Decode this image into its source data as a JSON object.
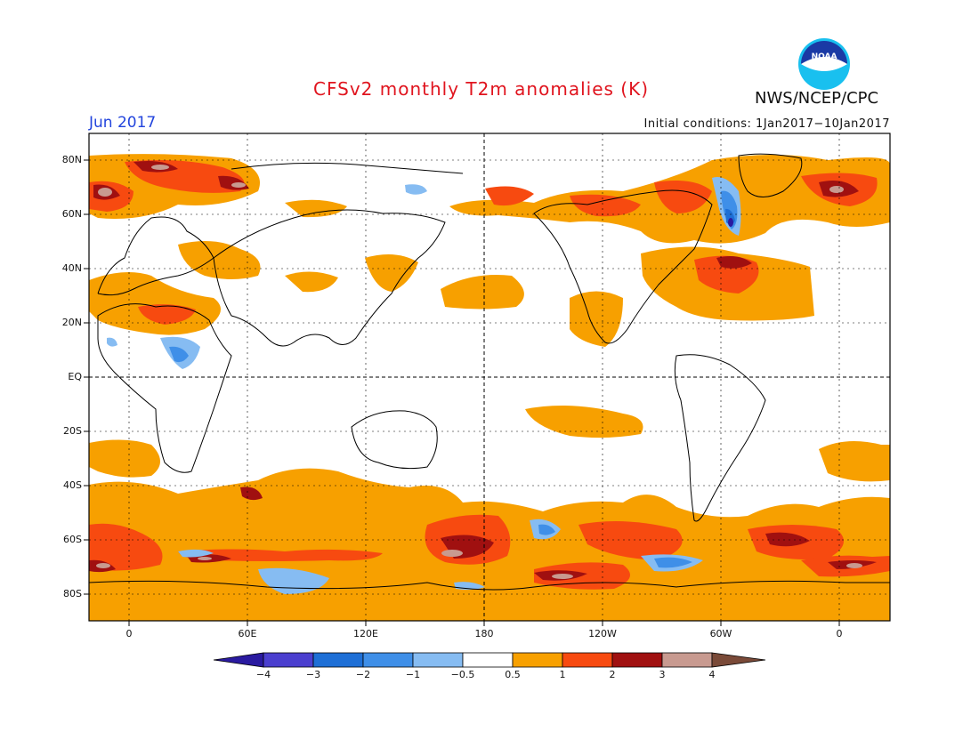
{
  "header": {
    "title": "CFSv2 monthly T2m anomalies (K)",
    "month": "Jun 2017",
    "initial_conditions": "Initial conditions: 1Jan2017−10Jan2017",
    "agency": "NWS/NCEP/CPC",
    "logo_text": "NOAA"
  },
  "axes": {
    "lat_labels": [
      "80N",
      "60N",
      "40N",
      "20N",
      "EQ",
      "20S",
      "40S",
      "60S",
      "80S"
    ],
    "lon_labels": [
      "0",
      "60E",
      "120E",
      "180",
      "120W",
      "60W",
      "0"
    ]
  },
  "colorbar": {
    "labels": [
      "−4",
      "−3",
      "−2",
      "−1",
      "−0.5",
      "0.5",
      "1",
      "2",
      "3",
      "4"
    ],
    "colors": [
      "#2a1aa0",
      "#4b3fcf",
      "#1e6fd6",
      "#3f8fe8",
      "#86bcf2",
      "#ffffff",
      "#f7a000",
      "#f74a10",
      "#a01010",
      "#c89a90",
      "#7a4a38"
    ]
  },
  "map_colors": {
    "pos_05": "#f7a000",
    "pos_1": "#f74a10",
    "pos_2": "#a01010",
    "pos_3": "#c89a90",
    "neg_05": "#86bcf2",
    "neg_1": "#3f8fe8",
    "neg_2": "#1e6fd6",
    "neg_3": "#2a1aa0"
  }
}
